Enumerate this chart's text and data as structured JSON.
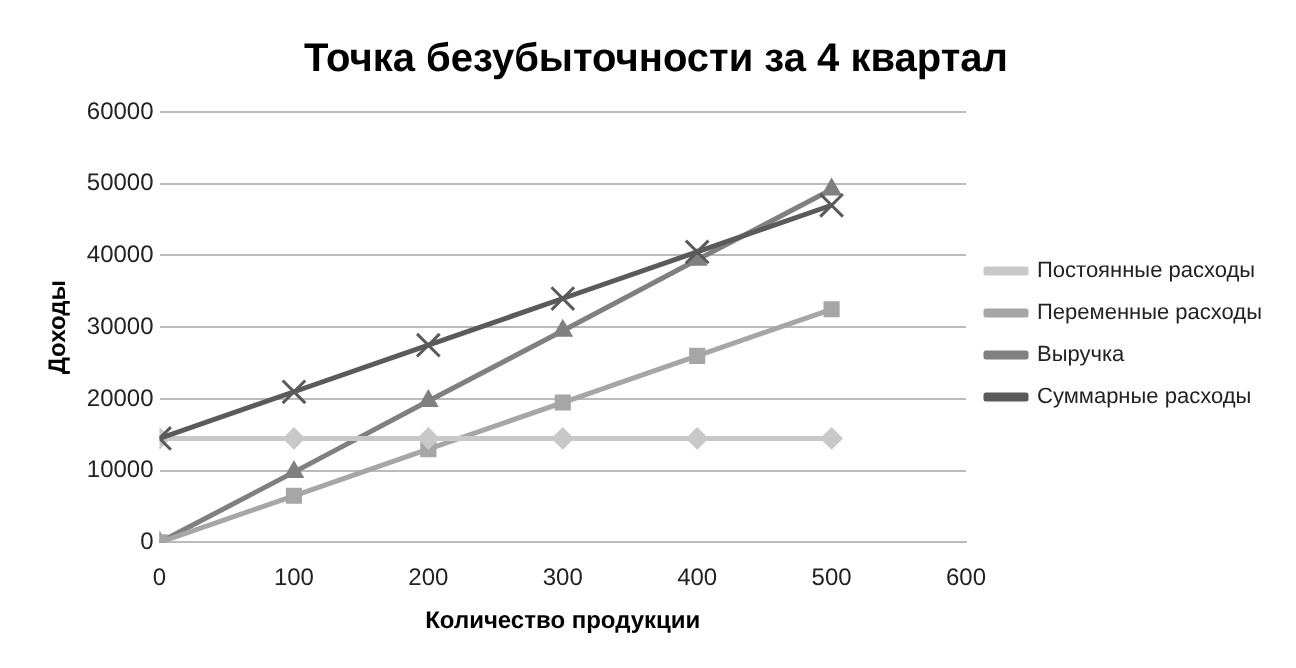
{
  "chart_data": {
    "type": "line",
    "title": "Точка безубыточности за 4 квартал",
    "xlabel": "Количество продукции",
    "ylabel": "Доходы",
    "x": [
      0,
      100,
      200,
      300,
      400,
      500
    ],
    "series": [
      {
        "name": "Постоянные расходы",
        "color": "#c8c8c8",
        "marker": "diamond",
        "values": [
          14500,
          14500,
          14500,
          14500,
          14500,
          14500
        ]
      },
      {
        "name": "Переменные расходы",
        "color": "#a6a6a6",
        "marker": "square",
        "values": [
          0,
          6500,
          13000,
          19500,
          26000,
          32500
        ]
      },
      {
        "name": "Выручка",
        "color": "#808080",
        "marker": "triangle",
        "values": [
          0,
          9800,
          19700,
          29500,
          39400,
          49200
        ]
      },
      {
        "name": "Суммарные расходы",
        "color": "#5a5a5a",
        "marker": "cross",
        "values": [
          14500,
          21000,
          27500,
          34000,
          40500,
          47000
        ]
      }
    ],
    "xlim": [
      0,
      600
    ],
    "xticks": [
      0,
      100,
      200,
      300,
      400,
      500,
      600
    ],
    "ylim": [
      0,
      60000
    ],
    "yticks": [
      0,
      10000,
      20000,
      30000,
      40000,
      50000,
      60000
    ],
    "grid": "y",
    "legend": "right"
  }
}
